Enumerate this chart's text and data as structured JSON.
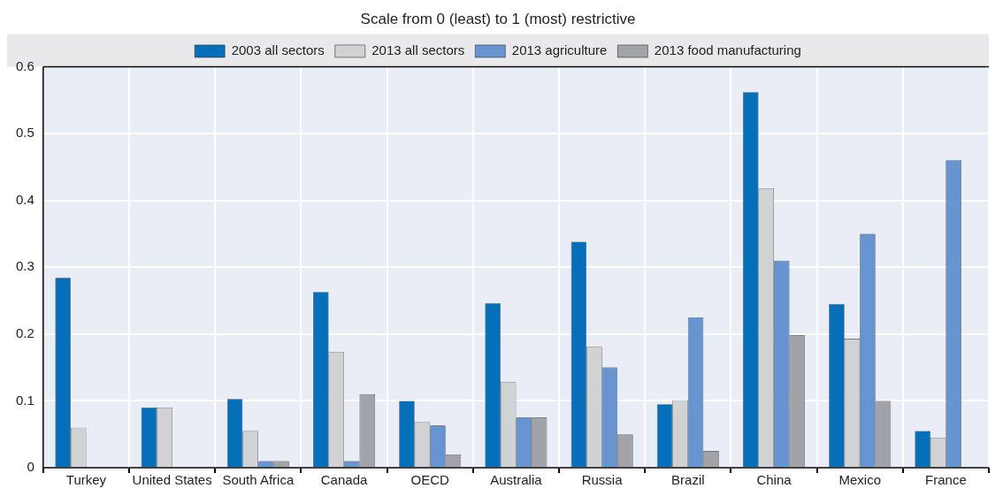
{
  "chart_data": {
    "type": "bar",
    "title": "Scale from 0 (least) to 1 (most) restrictive",
    "categories": [
      "Turkey",
      "United States",
      "South Africa",
      "Canada",
      "OECD",
      "Australia",
      "Russia",
      "Brazil",
      "China",
      "Mexico",
      "France"
    ],
    "series": [
      {
        "name": "2003 all sectors",
        "color": "#0570b9",
        "values": [
          0.284,
          0.09,
          0.103,
          0.263,
          0.1,
          0.246,
          0.338,
          0.095,
          0.562,
          0.245,
          0.055
        ]
      },
      {
        "name": "2013 all sectors",
        "color": "#d1d2d4",
        "values": [
          0.06,
          0.09,
          0.055,
          0.173,
          0.068,
          0.128,
          0.181,
          0.101,
          0.418,
          0.193,
          0.045
        ]
      },
      {
        "name": "2013 agriculture",
        "color": "#6594cf",
        "values": [
          null,
          null,
          0.01,
          0.01,
          0.063,
          0.075,
          0.15,
          0.225,
          0.31,
          0.35,
          0.46
        ]
      },
      {
        "name": "2013 food manufacturing",
        "color": "#a2a3a7",
        "values": [
          null,
          null,
          0.01,
          0.11,
          0.02,
          0.075,
          0.05,
          0.025,
          0.198,
          0.1,
          null
        ]
      }
    ],
    "ylim": [
      0,
      0.6
    ],
    "yticks": [
      0,
      0.1,
      0.2,
      0.3,
      0.4,
      0.5,
      0.6
    ],
    "grid": true,
    "legend": "top"
  }
}
